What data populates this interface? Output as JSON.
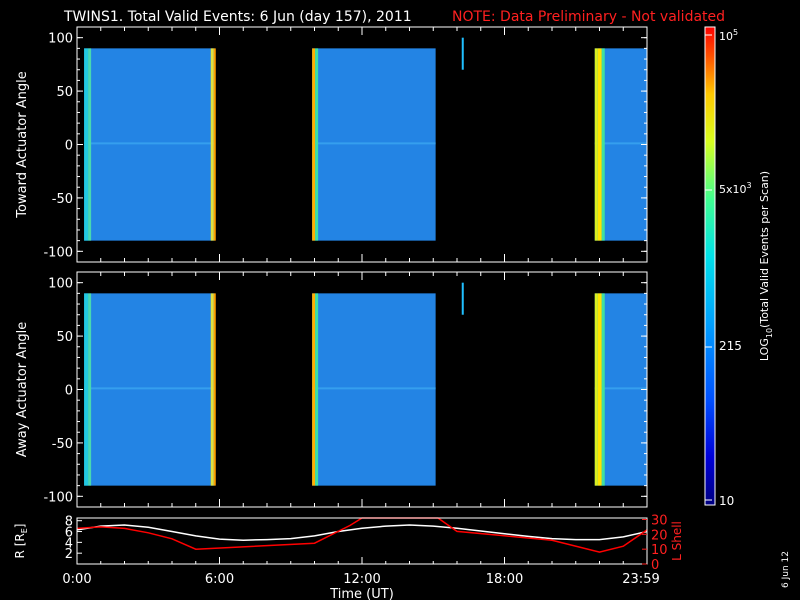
{
  "title": "TWINS1. Total Valid Events:  6 Jun (day 157), 2011",
  "note": "NOTE: Data Preliminary - Not validated",
  "stamp": "6 Jun 12",
  "chart_data": [
    {
      "type": "heatmap",
      "ylabel": "Toward Actuator Angle",
      "ylim": [
        -110,
        110
      ],
      "yticks": [
        "100",
        "50",
        "0",
        "-50",
        "-100"
      ],
      "xlim_hours": [
        0,
        24
      ],
      "data_blocks_hours": [
        [
          0.3,
          5.8
        ],
        [
          9.9,
          15.1
        ],
        [
          21.8,
          23.99
        ]
      ],
      "tick_spike_hours": 16.2
    },
    {
      "type": "heatmap",
      "ylabel": "Away Actuator Angle",
      "ylim": [
        -110,
        110
      ],
      "yticks": [
        "100",
        "50",
        "0",
        "-50",
        "-100"
      ],
      "xlim_hours": [
        0,
        24
      ],
      "data_blocks_hours": [
        [
          0.3,
          5.8
        ],
        [
          9.9,
          15.1
        ],
        [
          21.8,
          23.99
        ]
      ],
      "tick_spike_hours": 16.2
    },
    {
      "type": "line",
      "ylabel": "R [R",
      "ylabel_sub": "E",
      "ylabel_close": "]",
      "y2label": "L Shell",
      "xlabel": "Time (UT)",
      "xticks": [
        "0:00",
        "6:00",
        "12:00",
        "18:00",
        "23:59"
      ],
      "yticks_left": [
        "8",
        "6",
        "4",
        "2"
      ],
      "yticks_right": [
        "30",
        "20",
        "10",
        "0"
      ],
      "ylim": [
        0,
        8.5
      ],
      "y2lim": [
        0,
        31
      ],
      "series": [
        {
          "color": "#ffffff",
          "x": [
            0,
            1,
            2,
            3,
            4,
            5,
            6,
            7,
            8,
            9,
            10,
            11,
            12,
            13,
            14,
            15,
            16,
            17,
            18,
            19,
            20,
            21,
            22,
            23,
            24
          ],
          "y": [
            6.3,
            7.0,
            7.2,
            6.8,
            6.0,
            5.2,
            4.6,
            4.4,
            4.5,
            4.7,
            5.2,
            6.0,
            6.6,
            7.0,
            7.2,
            7.0,
            6.6,
            6.1,
            5.6,
            5.1,
            4.7,
            4.5,
            4.5,
            5.0,
            6.0
          ]
        },
        {
          "color": "#ff0000",
          "x": [
            0,
            1,
            2,
            3,
            4,
            5,
            10,
            11.5,
            12,
            15.2,
            16,
            18,
            20,
            22,
            23,
            24
          ],
          "y": [
            24,
            25,
            24,
            21,
            17,
            10,
            14,
            26,
            31,
            31,
            22,
            19,
            16,
            8,
            12,
            23
          ]
        }
      ]
    }
  ],
  "colorbar": {
    "label": "LOG10(Total Valid Events per Scan)",
    "label_main": "LOG",
    "label_sub": "10",
    "label_rest": "(Total Valid Events per Scan)",
    "ticks": [
      "10",
      "215",
      "5x10",
      "10"
    ],
    "tick_top_exp": "5",
    "tick_mid_exp": "3",
    "tick_mid_base": "5x10",
    "tick_top_base": "10"
  }
}
